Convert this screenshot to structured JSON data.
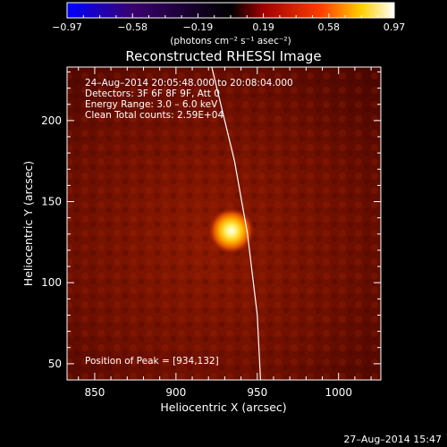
{
  "chart_data": {
    "type": "heatmap",
    "title": "Reconstructed RHESSI Image",
    "xlabel": "Heliocentric X (arcsec)",
    "ylabel": "Heliocentric Y (arcsec)",
    "xlim": [
      833,
      1026
    ],
    "ylim": [
      40,
      233
    ],
    "xticks": [
      850,
      900,
      950,
      1000
    ],
    "yticks": [
      50,
      100,
      150,
      200
    ],
    "colorbar": {
      "label": "(photons cm⁻² s⁻¹ asec⁻²)",
      "range": [
        -0.97,
        0.97
      ],
      "tick_labels": [
        "−0.97",
        "−0.58",
        "−0.19",
        "0.19",
        "0.58",
        "0.97"
      ],
      "colormap": [
        "#0000ff",
        "#3a0070",
        "#000000",
        "#a00000",
        "#ff4000",
        "#ffd000",
        "#ffffff"
      ]
    },
    "annotations": [
      "24–Aug–2014 20:05:48.000 to 20:08:04.000",
      "Detectors: 3F 6F 8F 9F, Att 0",
      "Energy Range: 3.0 – 6.0 keV",
      "Clean    Total counts: 2.59E+04"
    ],
    "peak": {
      "label": "Position of Peak = [934,132]",
      "x": 934,
      "y": 132
    },
    "limb_curve": [
      [
        922,
        233
      ],
      [
        936,
        175
      ],
      [
        944,
        130
      ],
      [
        950,
        80
      ],
      [
        952,
        40
      ]
    ],
    "background_level": 0.25
  },
  "footer": "27–Aug–2014 15:47"
}
